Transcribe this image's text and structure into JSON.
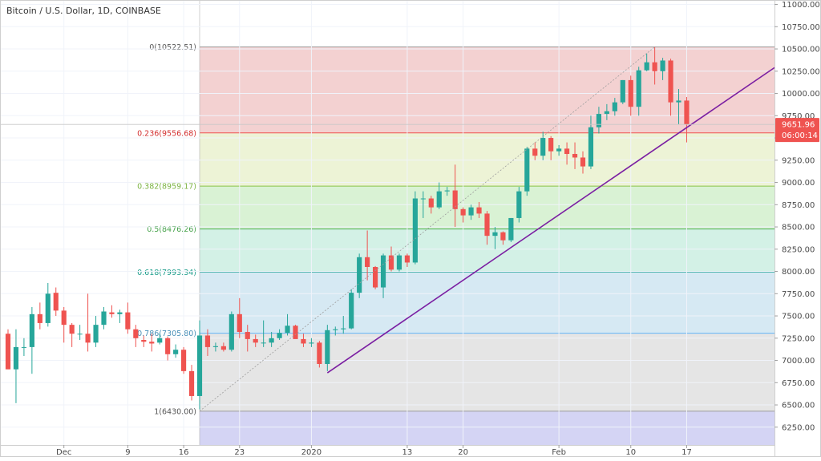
{
  "header": {
    "title": "Bitcoin / U.S. Dollar, 1D, COINBASE"
  },
  "price_axis": {
    "last_price_label": "9651.96",
    "countdown_label": "06:00:14"
  },
  "colors": {
    "up": "#26a69a",
    "down": "#ef5350",
    "trendline": "#7b1fa2",
    "last_price_badge": "#ef5350"
  },
  "chart_data": {
    "type": "candlestick",
    "title": "Bitcoin / U.S. Dollar, 1D, COINBASE",
    "ylim": [
      6050,
      11050
    ],
    "y_ticks": [
      6250,
      6500,
      6750,
      7000,
      7250,
      7500,
      7750,
      8000,
      8250,
      8500,
      8750,
      9000,
      9250,
      9500,
      9750,
      10000,
      10250,
      10500,
      10750,
      11000
    ],
    "x_ticks": [
      {
        "label": "Dec",
        "date": "2019-12-01"
      },
      {
        "label": "9",
        "date": "2019-12-09"
      },
      {
        "label": "16",
        "date": "2019-12-16"
      },
      {
        "label": "23",
        "date": "2019-12-23"
      },
      {
        "label": "2020",
        "date": "2020-01-01"
      },
      {
        "label": "13",
        "date": "2020-01-13"
      },
      {
        "label": "20",
        "date": "2020-01-20"
      },
      {
        "label": "Feb",
        "date": "2020-02-01"
      },
      {
        "label": "10",
        "date": "2020-02-10"
      },
      {
        "label": "17",
        "date": "2020-02-17"
      }
    ],
    "x_range": [
      "2019-11-24",
      "2020-02-28"
    ],
    "candles": [
      {
        "date": "2019-11-24",
        "o": 7300,
        "h": 7350,
        "l": 6900,
        "c": 6900
      },
      {
        "date": "2019-11-25",
        "o": 6900,
        "h": 7350,
        "l": 6520,
        "c": 7150
      },
      {
        "date": "2019-11-26",
        "o": 7150,
        "h": 7250,
        "l": 7050,
        "c": 7150
      },
      {
        "date": "2019-11-27",
        "o": 7150,
        "h": 7600,
        "l": 6850,
        "c": 7520
      },
      {
        "date": "2019-11-28",
        "o": 7520,
        "h": 7650,
        "l": 7350,
        "c": 7420
      },
      {
        "date": "2019-11-29",
        "o": 7420,
        "h": 7870,
        "l": 7380,
        "c": 7750
      },
      {
        "date": "2019-11-30",
        "o": 7760,
        "h": 7820,
        "l": 7500,
        "c": 7560
      },
      {
        "date": "2019-12-01",
        "o": 7560,
        "h": 7600,
        "l": 7200,
        "c": 7400
      },
      {
        "date": "2019-12-02",
        "o": 7400,
        "h": 7420,
        "l": 7150,
        "c": 7300
      },
      {
        "date": "2019-12-03",
        "o": 7300,
        "h": 7400,
        "l": 7230,
        "c": 7300
      },
      {
        "date": "2019-12-04",
        "o": 7300,
        "h": 7750,
        "l": 7100,
        "c": 7200
      },
      {
        "date": "2019-12-05",
        "o": 7200,
        "h": 7500,
        "l": 7150,
        "c": 7400
      },
      {
        "date": "2019-12-06",
        "o": 7400,
        "h": 7600,
        "l": 7350,
        "c": 7550
      },
      {
        "date": "2019-12-07",
        "o": 7540,
        "h": 7620,
        "l": 7480,
        "c": 7520
      },
      {
        "date": "2019-12-08",
        "o": 7520,
        "h": 7570,
        "l": 7420,
        "c": 7540
      },
      {
        "date": "2019-12-09",
        "o": 7540,
        "h": 7650,
        "l": 7300,
        "c": 7350
      },
      {
        "date": "2019-12-10",
        "o": 7350,
        "h": 7400,
        "l": 7150,
        "c": 7250
      },
      {
        "date": "2019-12-11",
        "o": 7230,
        "h": 7280,
        "l": 7150,
        "c": 7210
      },
      {
        "date": "2019-12-12",
        "o": 7210,
        "h": 7300,
        "l": 7100,
        "c": 7190
      },
      {
        "date": "2019-12-13",
        "o": 7200,
        "h": 7300,
        "l": 7180,
        "c": 7250
      },
      {
        "date": "2019-12-14",
        "o": 7250,
        "h": 7270,
        "l": 7000,
        "c": 7070
      },
      {
        "date": "2019-12-15",
        "o": 7070,
        "h": 7180,
        "l": 7030,
        "c": 7120
      },
      {
        "date": "2019-12-16",
        "o": 7120,
        "h": 7150,
        "l": 6850,
        "c": 6880
      },
      {
        "date": "2019-12-17",
        "o": 6880,
        "h": 6950,
        "l": 6550,
        "c": 6600
      },
      {
        "date": "2019-12-18",
        "o": 6600,
        "h": 7450,
        "l": 6450,
        "c": 7280
      },
      {
        "date": "2019-12-19",
        "o": 7280,
        "h": 7350,
        "l": 7050,
        "c": 7150
      },
      {
        "date": "2019-12-20",
        "o": 7150,
        "h": 7200,
        "l": 7100,
        "c": 7160
      },
      {
        "date": "2019-12-21",
        "o": 7160,
        "h": 7200,
        "l": 7100,
        "c": 7120
      },
      {
        "date": "2019-12-22",
        "o": 7120,
        "h": 7550,
        "l": 7100,
        "c": 7520
      },
      {
        "date": "2019-12-23",
        "o": 7520,
        "h": 7700,
        "l": 7250,
        "c": 7320
      },
      {
        "date": "2019-12-24",
        "o": 7320,
        "h": 7400,
        "l": 7100,
        "c": 7240
      },
      {
        "date": "2019-12-25",
        "o": 7240,
        "h": 7290,
        "l": 7150,
        "c": 7200
      },
      {
        "date": "2019-12-26",
        "o": 7200,
        "h": 7450,
        "l": 7150,
        "c": 7200
      },
      {
        "date": "2019-12-27",
        "o": 7200,
        "h": 7320,
        "l": 7150,
        "c": 7250
      },
      {
        "date": "2019-12-28",
        "o": 7250,
        "h": 7350,
        "l": 7230,
        "c": 7310
      },
      {
        "date": "2019-12-29",
        "o": 7310,
        "h": 7520,
        "l": 7280,
        "c": 7390
      },
      {
        "date": "2019-12-30",
        "o": 7390,
        "h": 7400,
        "l": 7250,
        "c": 7240
      },
      {
        "date": "2019-12-31",
        "o": 7240,
        "h": 7300,
        "l": 7150,
        "c": 7190
      },
      {
        "date": "2020-01-01",
        "o": 7190,
        "h": 7250,
        "l": 7150,
        "c": 7200
      },
      {
        "date": "2020-01-02",
        "o": 7200,
        "h": 7220,
        "l": 6920,
        "c": 6960
      },
      {
        "date": "2020-01-03",
        "o": 6960,
        "h": 7400,
        "l": 6880,
        "c": 7340
      },
      {
        "date": "2020-01-04",
        "o": 7340,
        "h": 7380,
        "l": 7280,
        "c": 7350
      },
      {
        "date": "2020-01-05",
        "o": 7350,
        "h": 7500,
        "l": 7300,
        "c": 7360
      },
      {
        "date": "2020-01-06",
        "o": 7360,
        "h": 7800,
        "l": 7350,
        "c": 7760
      },
      {
        "date": "2020-01-07",
        "o": 7760,
        "h": 8200,
        "l": 7700,
        "c": 8160
      },
      {
        "date": "2020-01-08",
        "o": 8160,
        "h": 8460,
        "l": 7900,
        "c": 8050
      },
      {
        "date": "2020-01-09",
        "o": 8050,
        "h": 8060,
        "l": 7800,
        "c": 7820
      },
      {
        "date": "2020-01-10",
        "o": 7820,
        "h": 8200,
        "l": 7700,
        "c": 8180
      },
      {
        "date": "2020-01-11",
        "o": 8180,
        "h": 8280,
        "l": 8000,
        "c": 8020
      },
      {
        "date": "2020-01-12",
        "o": 8020,
        "h": 8200,
        "l": 8000,
        "c": 8180
      },
      {
        "date": "2020-01-13",
        "o": 8180,
        "h": 8200,
        "l": 8050,
        "c": 8100
      },
      {
        "date": "2020-01-14",
        "o": 8100,
        "h": 8900,
        "l": 8080,
        "c": 8820
      },
      {
        "date": "2020-01-15",
        "o": 8820,
        "h": 8900,
        "l": 8600,
        "c": 8820
      },
      {
        "date": "2020-01-16",
        "o": 8820,
        "h": 8850,
        "l": 8650,
        "c": 8720
      },
      {
        "date": "2020-01-17",
        "o": 8720,
        "h": 9000,
        "l": 8700,
        "c": 8900
      },
      {
        "date": "2020-01-18",
        "o": 8900,
        "h": 8950,
        "l": 8850,
        "c": 8910
      },
      {
        "date": "2020-01-19",
        "o": 8910,
        "h": 9200,
        "l": 8500,
        "c": 8700
      },
      {
        "date": "2020-01-20",
        "o": 8700,
        "h": 8720,
        "l": 8550,
        "c": 8630
      },
      {
        "date": "2020-01-21",
        "o": 8630,
        "h": 8750,
        "l": 8580,
        "c": 8720
      },
      {
        "date": "2020-01-22",
        "o": 8720,
        "h": 8780,
        "l": 8600,
        "c": 8650
      },
      {
        "date": "2020-01-23",
        "o": 8650,
        "h": 8680,
        "l": 8300,
        "c": 8400
      },
      {
        "date": "2020-01-24",
        "o": 8400,
        "h": 8500,
        "l": 8250,
        "c": 8440
      },
      {
        "date": "2020-01-25",
        "o": 8440,
        "h": 8450,
        "l": 8300,
        "c": 8350
      },
      {
        "date": "2020-01-26",
        "o": 8350,
        "h": 8600,
        "l": 8330,
        "c": 8600
      },
      {
        "date": "2020-01-27",
        "o": 8600,
        "h": 8950,
        "l": 8550,
        "c": 8900
      },
      {
        "date": "2020-01-28",
        "o": 8900,
        "h": 9400,
        "l": 8850,
        "c": 9380
      },
      {
        "date": "2020-01-29",
        "o": 9380,
        "h": 9450,
        "l": 9250,
        "c": 9300
      },
      {
        "date": "2020-01-30",
        "o": 9300,
        "h": 9570,
        "l": 9250,
        "c": 9500
      },
      {
        "date": "2020-01-31",
        "o": 9500,
        "h": 9520,
        "l": 9250,
        "c": 9350
      },
      {
        "date": "2020-02-01",
        "o": 9350,
        "h": 9420,
        "l": 9300,
        "c": 9380
      },
      {
        "date": "2020-02-02",
        "o": 9380,
        "h": 9450,
        "l": 9200,
        "c": 9320
      },
      {
        "date": "2020-02-03",
        "o": 9320,
        "h": 9450,
        "l": 9150,
        "c": 9280
      },
      {
        "date": "2020-02-04",
        "o": 9280,
        "h": 9350,
        "l": 9100,
        "c": 9180
      },
      {
        "date": "2020-02-05",
        "o": 9180,
        "h": 9750,
        "l": 9150,
        "c": 9620
      },
      {
        "date": "2020-02-06",
        "o": 9620,
        "h": 9850,
        "l": 9550,
        "c": 9770
      },
      {
        "date": "2020-02-07",
        "o": 9770,
        "h": 9880,
        "l": 9700,
        "c": 9800
      },
      {
        "date": "2020-02-08",
        "o": 9800,
        "h": 9950,
        "l": 9750,
        "c": 9900
      },
      {
        "date": "2020-02-09",
        "o": 9900,
        "h": 10150,
        "l": 9880,
        "c": 10150
      },
      {
        "date": "2020-02-10",
        "o": 10150,
        "h": 10200,
        "l": 9750,
        "c": 9850
      },
      {
        "date": "2020-02-11",
        "o": 9850,
        "h": 10300,
        "l": 9750,
        "c": 10260
      },
      {
        "date": "2020-02-12",
        "o": 10260,
        "h": 10450,
        "l": 10250,
        "c": 10350
      },
      {
        "date": "2020-02-13",
        "o": 10350,
        "h": 10520,
        "l": 10100,
        "c": 10250
      },
      {
        "date": "2020-02-14",
        "o": 10250,
        "h": 10400,
        "l": 10150,
        "c": 10370
      },
      {
        "date": "2020-02-15",
        "o": 10370,
        "h": 10390,
        "l": 9750,
        "c": 9900
      },
      {
        "date": "2020-02-16",
        "o": 9900,
        "h": 10050,
        "l": 9650,
        "c": 9920
      },
      {
        "date": "2020-02-17",
        "o": 9920,
        "h": 9960,
        "l": 9450,
        "c": 9651.96
      }
    ],
    "fibonacci": {
      "levels": [
        {
          "ratio": "0",
          "price": 10522.51,
          "label": "0(10522.51)",
          "line": "#9e9e9e",
          "fill": "#f3d1d1",
          "text": "#555555"
        },
        {
          "ratio": "0.236",
          "price": 9556.68,
          "label": "0.236(9556.68)",
          "line": "#ef5350",
          "fill": "#edf3d6",
          "text": "#d32f2f"
        },
        {
          "ratio": "0.382",
          "price": 8959.17,
          "label": "0.382(8959.17)",
          "line": "#8bc34a",
          "fill": "#d9f2d4",
          "text": "#7cb342"
        },
        {
          "ratio": "0.5",
          "price": 8476.26,
          "label": "0.5(8476.26)",
          "line": "#4caf50",
          "fill": "#d3f1e6",
          "text": "#43a047"
        },
        {
          "ratio": "0.618",
          "price": 7993.34,
          "label": "0.618(7993.34)",
          "line": "#26a69a",
          "fill": "#d6e9f3",
          "text": "#1e9e8c"
        },
        {
          "ratio": "0.786",
          "price": 7305.8,
          "label": "0.786(7305.80)",
          "line": "#64b5f6",
          "fill": "#e5e5e5",
          "text": "#4a90b8"
        },
        {
          "ratio": "1",
          "price": 6430.0,
          "label": "1(6430.00)",
          "line": "#9e9e9e",
          "fill": "#d4d4f4",
          "text": "#555555"
        }
      ],
      "start_date": "2019-12-18",
      "end_date": "2020-02-28",
      "anchor_low": {
        "date": "2019-12-18",
        "price": 6430.0
      },
      "anchor_high": {
        "date": "2020-02-13",
        "price": 10522.51
      }
    },
    "trendline": {
      "start": {
        "date": "2020-01-03",
        "price": 6860
      },
      "end": {
        "date": "2020-02-28",
        "price": 10290
      }
    },
    "last_price": 9651.96
  }
}
